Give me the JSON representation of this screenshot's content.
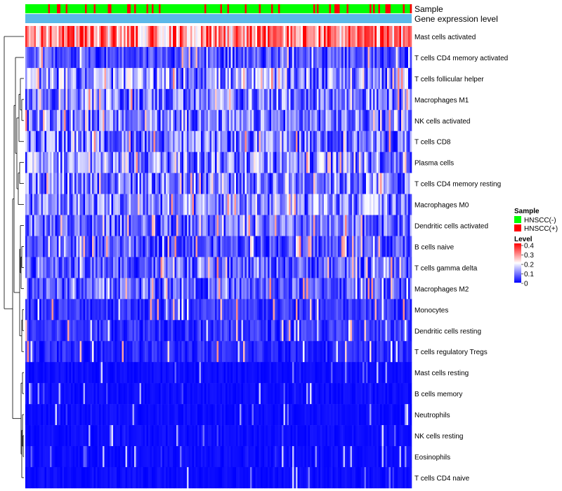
{
  "chart_data": {
    "type": "heatmap",
    "title": "",
    "column_annotation_labels": [
      "Sample",
      "Gene expression level"
    ],
    "annotation_colors": {
      "HNSCC(-)": "#00ff00",
      "HNSCC(+)": "#ff0000",
      "Gene expression level": "#5bb8e8"
    },
    "n_columns": 220,
    "column_group_fraction_positive": 0.2,
    "rows": [
      {
        "label": "Mast cells activated",
        "typical_level": 0.3
      },
      {
        "label": "T cells CD4 memory activated",
        "typical_level": 0.06
      },
      {
        "label": "T cells follicular helper",
        "typical_level": 0.11
      },
      {
        "label": "Macrophages M1",
        "typical_level": 0.09
      },
      {
        "label": "NK cells activated",
        "typical_level": 0.09
      },
      {
        "label": "T cells CD8",
        "typical_level": 0.09
      },
      {
        "label": "Plasma cells",
        "typical_level": 0.11
      },
      {
        "label": "T cells CD4 memory resting",
        "typical_level": 0.1
      },
      {
        "label": "Macrophages M0",
        "typical_level": 0.1
      },
      {
        "label": "Dendritic cells activated",
        "typical_level": 0.08
      },
      {
        "label": "B cells naive",
        "typical_level": 0.06
      },
      {
        "label": "T cells gamma delta",
        "typical_level": 0.07
      },
      {
        "label": "Macrophages M2",
        "typical_level": 0.07
      },
      {
        "label": "Monocytes",
        "typical_level": 0.04
      },
      {
        "label": "Dendritic cells resting",
        "typical_level": 0.04
      },
      {
        "label": "T cells regulatory  Tregs",
        "typical_level": 0.03
      },
      {
        "label": "Mast cells resting",
        "typical_level": 0.01
      },
      {
        "label": "B cells memory",
        "typical_level": 0.01
      },
      {
        "label": "Neutrophils",
        "typical_level": 0.01
      },
      {
        "label": "NK cells resting",
        "typical_level": 0.01
      },
      {
        "label": "Eosinophils",
        "typical_level": 0.005
      },
      {
        "label": "T cells CD4 naive",
        "typical_level": 0.005
      }
    ],
    "color_scale": {
      "min": 0,
      "max": 0.4,
      "stops": [
        {
          "value": 0,
          "color": "#0000ff"
        },
        {
          "value": 0.2,
          "color": "#ffffff"
        },
        {
          "value": 0.4,
          "color": "#ff0000"
        }
      ]
    },
    "legend": {
      "sample_title": "Sample",
      "sample_items": [
        "HNSCC(-)",
        "HNSCC(+)"
      ],
      "level_title": "Level",
      "level_ticks": [
        "0.4",
        "0.3",
        "0.2",
        "0.1",
        "0"
      ],
      "placement": "right"
    }
  }
}
